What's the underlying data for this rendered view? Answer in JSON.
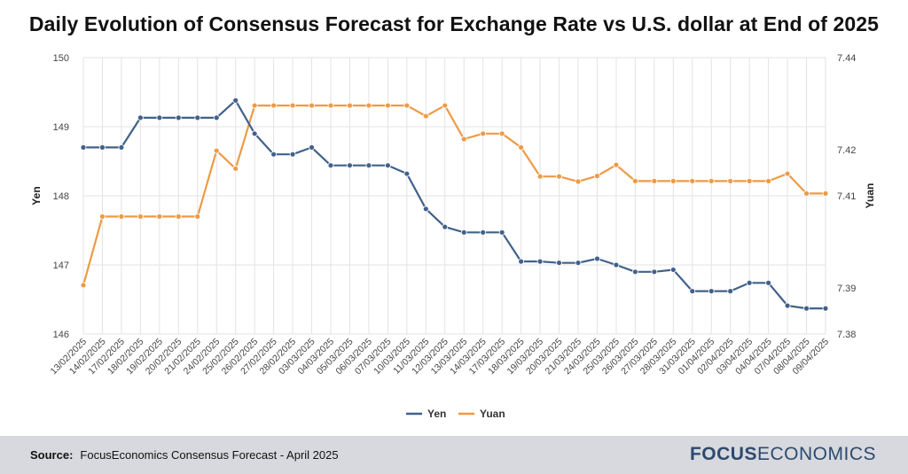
{
  "colors": {
    "yen": "#41618a",
    "yuan": "#ee9a45",
    "grid": "#e3e3e3",
    "text": "#444444"
  },
  "footer": {
    "source_label": "Source:",
    "source_text": "FocusEconomics Consensus Forecast - April 2025",
    "brand_bold": "FOCUS",
    "brand_regular": "ECONOMICS"
  },
  "chart_data": {
    "type": "line",
    "title": "Daily Evolution of Consensus Forecast for Exchange Rate vs U.S. dollar at End of 2025",
    "ylabel_left": "Yen",
    "ylabel_right": "Yuan",
    "y_left_range": [
      146,
      150
    ],
    "y_left_ticks": [
      "146",
      "147",
      "148",
      "149",
      "150"
    ],
    "y_right_range": [
      7.38,
      7.44
    ],
    "y_right_ticks": [
      "7.38",
      "7.39",
      "7.41",
      "7.42",
      "7.44"
    ],
    "grid": true,
    "legend": "bottom-center",
    "categories": [
      "13/02/2025",
      "14/02/2025",
      "17/02/2025",
      "18/02/2025",
      "19/02/2025",
      "20/02/2025",
      "21/02/2025",
      "24/02/2025",
      "25/02/2025",
      "26/02/2025",
      "27/02/2025",
      "28/02/2025",
      "03/03/2025",
      "04/03/2025",
      "05/03/2025",
      "06/03/2025",
      "07/03/2025",
      "10/03/2025",
      "11/03/2025",
      "12/03/2025",
      "13/03/2025",
      "14/03/2025",
      "17/03/2025",
      "18/03/2025",
      "19/03/2025",
      "20/03/2025",
      "21/03/2025",
      "24/03/2025",
      "25/03/2025",
      "26/03/2025",
      "27/03/2025",
      "28/03/2025",
      "31/03/2025",
      "01/04/2025",
      "02/04/2025",
      "03/04/2025",
      "04/04/2025",
      "07/04/2025",
      "08/04/2025",
      "09/04/2025"
    ],
    "series": [
      {
        "name": "Yen",
        "axis": "left",
        "values": [
          148.7,
          148.7,
          148.7,
          149.13,
          149.13,
          149.13,
          149.13,
          149.13,
          149.38,
          148.9,
          148.6,
          148.6,
          148.7,
          148.44,
          148.44,
          148.44,
          148.44,
          148.32,
          147.81,
          147.55,
          147.47,
          147.47,
          147.47,
          147.05,
          147.05,
          147.03,
          147.03,
          147.09,
          147.0,
          146.9,
          146.9,
          146.93,
          146.62,
          146.62,
          146.62,
          146.74,
          146.74,
          146.41,
          146.37,
          146.37
        ]
      },
      {
        "name": "Yuan",
        "axis": "right",
        "values": [
          7.3906,
          7.4055,
          7.4055,
          7.4055,
          7.4055,
          7.4055,
          7.4055,
          7.4198,
          7.4159,
          7.4296,
          7.4296,
          7.4296,
          7.4296,
          7.4296,
          7.4296,
          7.4296,
          7.4296,
          7.4296,
          7.4273,
          7.4296,
          7.4223,
          7.4235,
          7.4235,
          7.4205,
          7.4142,
          7.4142,
          7.4131,
          7.4143,
          7.4167,
          7.4132,
          7.4132,
          7.4132,
          7.4132,
          7.4132,
          7.4132,
          7.4132,
          7.4132,
          7.4148,
          7.4105,
          7.4105
        ]
      }
    ]
  }
}
